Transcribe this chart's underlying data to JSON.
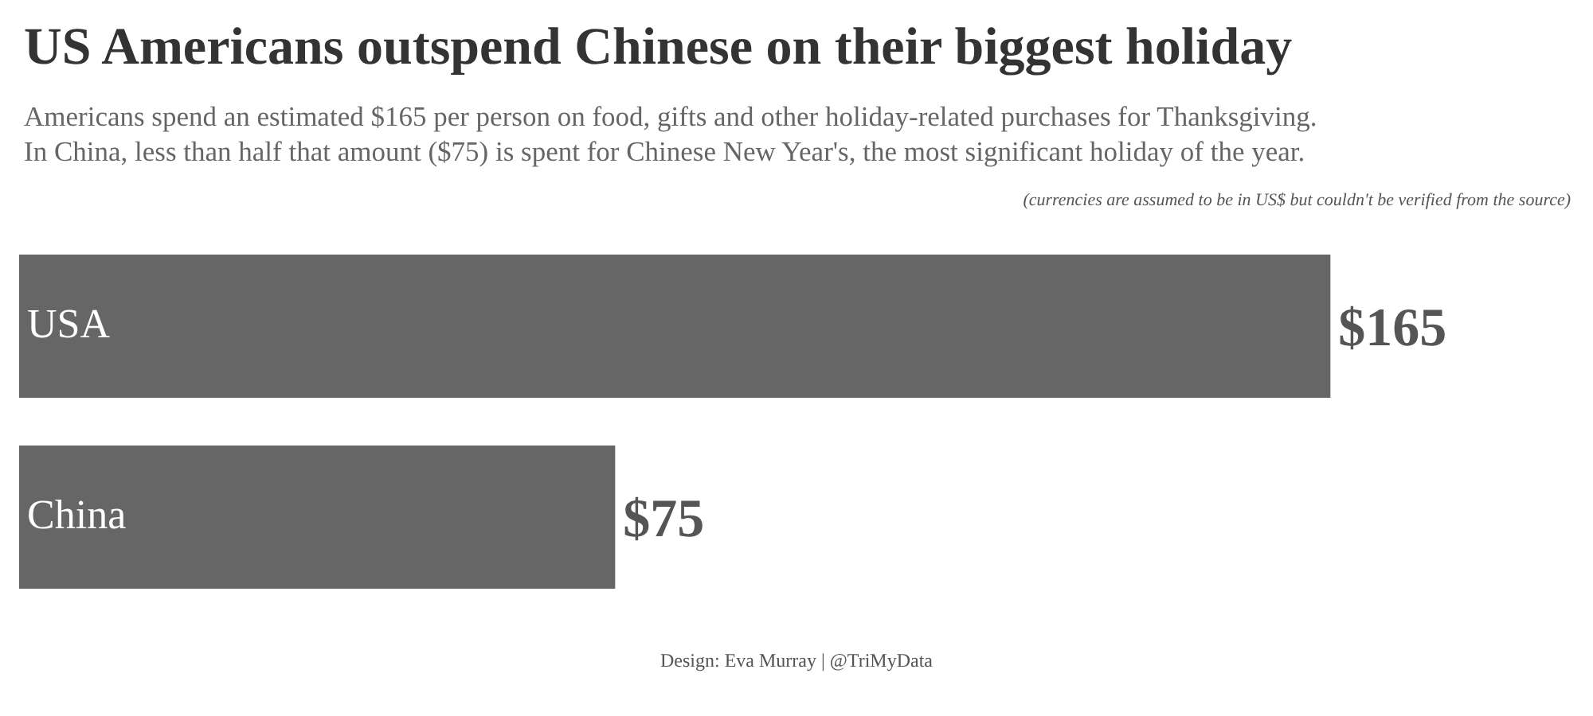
{
  "chart_data": {
    "type": "bar",
    "orientation": "horizontal",
    "title": "US Americans outspend Chinese on their biggest holiday",
    "subtitle": "Americans spend an estimated $165 per person on food, gifts and other holiday-related purchases for Thanksgiving.\nIn China, less than half that amount ($75) is spent for Chinese New Year's, the most significant holiday of the year.",
    "annotations": [
      "(currencies are assumed to be in US$ but couldn't be verified from the source)",
      "Design: Eva Murray | @TriMyData"
    ],
    "categories": [
      "USA",
      "China"
    ],
    "values": [
      165,
      75
    ],
    "value_labels": [
      "$165",
      "$75"
    ],
    "color": "#666666"
  }
}
